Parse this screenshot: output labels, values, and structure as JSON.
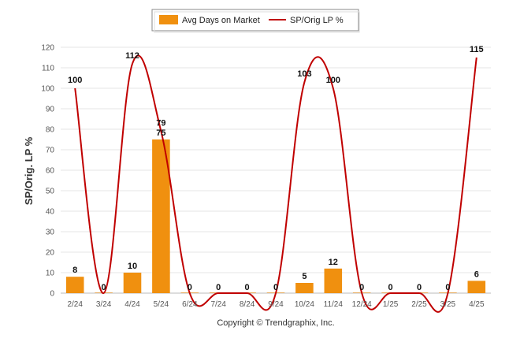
{
  "chart_data": {
    "type": "bar",
    "categories": [
      "2/24",
      "3/24",
      "4/24",
      "5/24",
      "6/24",
      "7/24",
      "8/24",
      "9/24",
      "10/24",
      "11/24",
      "12/24",
      "1/25",
      "2/25",
      "3/25",
      "4/25"
    ],
    "series": [
      {
        "name": "Avg Days on Market",
        "kind": "bar",
        "color": "#F0900F",
        "values": [
          8,
          0,
          10,
          75,
          0,
          0,
          0,
          0,
          5,
          12,
          0,
          0,
          0,
          0,
          6
        ]
      },
      {
        "name": "SP/Orig LP %",
        "kind": "line",
        "color": "#C00000",
        "values": [
          100,
          0,
          112,
          79,
          0,
          0,
          0,
          0,
          103,
          100,
          0,
          0,
          0,
          0,
          115
        ],
        "labels": [
          "100",
          "",
          "112",
          "79",
          "0",
          "0",
          "0",
          "0",
          "103",
          "100",
          "0",
          "0",
          "0",
          "0",
          "115"
        ]
      }
    ],
    "bar_labels": [
      "8",
      "0",
      "10",
      "75",
      "",
      "",
      "",
      "",
      "5",
      "12",
      "",
      "",
      "",
      "",
      "6"
    ],
    "ylabel": "SP/Orig. LP %",
    "ylim": [
      0,
      120
    ],
    "yticks": [
      0,
      10,
      20,
      30,
      40,
      50,
      60,
      70,
      80,
      90,
      100,
      110,
      120
    ],
    "grid": true,
    "legend_position": "top-center"
  },
  "footer": {
    "copyright": "Copyright © Trendgraphix, Inc."
  }
}
